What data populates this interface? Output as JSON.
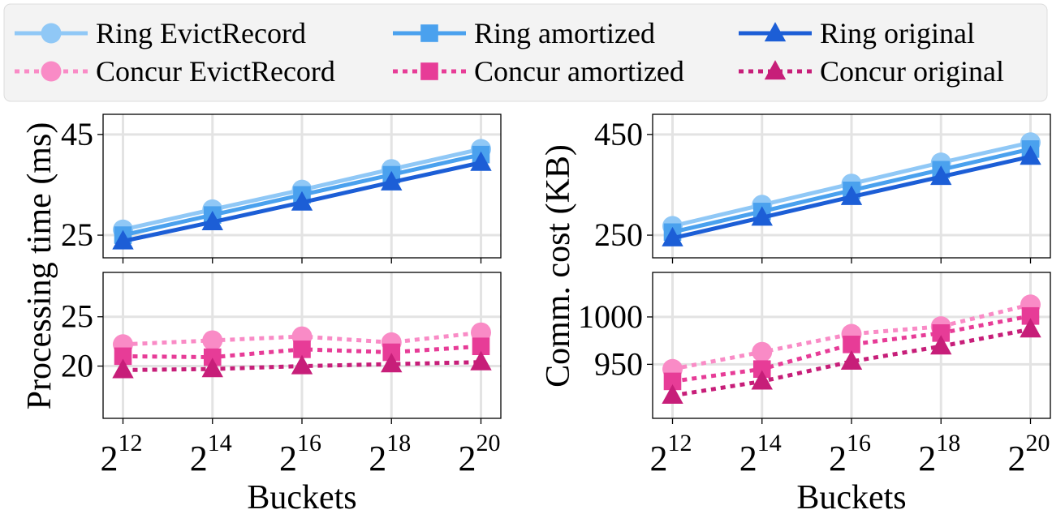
{
  "legend": {
    "entries": [
      {
        "label": "Ring EvictRecord",
        "color": "#90c8f6",
        "dash": "solid",
        "marker": "circle"
      },
      {
        "label": "Ring amortized",
        "color": "#4aa1ee",
        "dash": "solid",
        "marker": "square"
      },
      {
        "label": "Ring original",
        "color": "#1c5ed6",
        "dash": "solid",
        "marker": "triangle"
      },
      {
        "label": "Concur EvictRecord",
        "color": "#f98bc6",
        "dash": "dotted",
        "marker": "circle"
      },
      {
        "label": "Concur amortized",
        "color": "#e73c97",
        "dash": "dotted",
        "marker": "square"
      },
      {
        "label": "Concur original",
        "color": "#c71e79",
        "dash": "dotted",
        "marker": "triangle"
      }
    ]
  },
  "chart_data": [
    {
      "type": "line",
      "panel": "left-top",
      "ylabel": "Processing time (ms)",
      "xlabel": "Buckets",
      "x": [
        "2^12",
        "2^14",
        "2^16",
        "2^18",
        "2^20"
      ],
      "x_ticks": [
        {
          "base": "2",
          "exp": "12"
        },
        {
          "base": "2",
          "exp": "14"
        },
        {
          "base": "2",
          "exp": "16"
        },
        {
          "base": "2",
          "exp": "18"
        },
        {
          "base": "2",
          "exp": "20"
        }
      ],
      "ylim": [
        20.5,
        49
      ],
      "yticks": [
        25,
        45
      ],
      "grid": true,
      "series": [
        {
          "name": "Ring EvictRecord",
          "values": [
            26.1,
            30.1,
            34.0,
            38.1,
            42.1
          ]
        },
        {
          "name": "Ring amortized",
          "values": [
            25.0,
            29.0,
            33.0,
            37.0,
            41.0
          ]
        },
        {
          "name": "Ring original",
          "values": [
            23.8,
            27.6,
            31.5,
            35.5,
            39.4
          ]
        }
      ]
    },
    {
      "type": "line",
      "panel": "left-bottom",
      "ylabel": "Processing time (ms)",
      "xlabel": "Buckets",
      "x": [
        "2^12",
        "2^14",
        "2^16",
        "2^18",
        "2^20"
      ],
      "x_ticks": [
        {
          "base": "2",
          "exp": "12"
        },
        {
          "base": "2",
          "exp": "14"
        },
        {
          "base": "2",
          "exp": "16"
        },
        {
          "base": "2",
          "exp": "18"
        },
        {
          "base": "2",
          "exp": "20"
        }
      ],
      "ylim": [
        14.7,
        29.5
      ],
      "yticks": [
        20,
        25
      ],
      "grid": true,
      "series": [
        {
          "name": "Concur EvictRecord",
          "values": [
            22.2,
            22.6,
            23.0,
            22.4,
            23.4
          ]
        },
        {
          "name": "Concur amortized",
          "values": [
            21.0,
            20.9,
            21.7,
            21.4,
            22.0
          ]
        },
        {
          "name": "Concur original",
          "values": [
            19.6,
            19.7,
            20.0,
            20.2,
            20.4
          ]
        }
      ]
    },
    {
      "type": "line",
      "panel": "right-top",
      "ylabel": "Comm. cost (KB)",
      "xlabel": "Buckets",
      "x": [
        "2^12",
        "2^14",
        "2^16",
        "2^18",
        "2^20"
      ],
      "x_ticks": [
        {
          "base": "2",
          "exp": "12"
        },
        {
          "base": "2",
          "exp": "14"
        },
        {
          "base": "2",
          "exp": "16"
        },
        {
          "base": "2",
          "exp": "18"
        },
        {
          "base": "2",
          "exp": "20"
        }
      ],
      "ylim": [
        205,
        490
      ],
      "yticks": [
        250,
        450
      ],
      "grid": true,
      "series": [
        {
          "name": "Ring EvictRecord",
          "values": [
            268,
            310,
            352,
            394,
            434
          ]
        },
        {
          "name": "Ring amortized",
          "values": [
            256,
            297,
            339,
            380,
            421
          ]
        },
        {
          "name": "Ring original",
          "values": [
            244,
            285,
            326,
            366,
            406
          ]
        }
      ]
    },
    {
      "type": "line",
      "panel": "right-bottom",
      "ylabel": "Comm. cost (KB)",
      "xlabel": "Buckets",
      "x": [
        "2^12",
        "2^14",
        "2^16",
        "2^18",
        "2^20"
      ],
      "x_ticks": [
        {
          "base": "2",
          "exp": "12"
        },
        {
          "base": "2",
          "exp": "14"
        },
        {
          "base": "2",
          "exp": "16"
        },
        {
          "base": "2",
          "exp": "18"
        },
        {
          "base": "2",
          "exp": "20"
        }
      ],
      "ylim": [
        893,
        1047
      ],
      "yticks": [
        950,
        1000
      ],
      "grid": true,
      "series": [
        {
          "name": "Concur EvictRecord",
          "values": [
            945,
            963,
            982,
            990,
            1013
          ]
        },
        {
          "name": "Concur amortized",
          "values": [
            932,
            945,
            971,
            983,
            1001
          ]
        },
        {
          "name": "Concur original",
          "values": [
            917,
            932,
            953,
            969,
            987
          ]
        }
      ]
    }
  ]
}
